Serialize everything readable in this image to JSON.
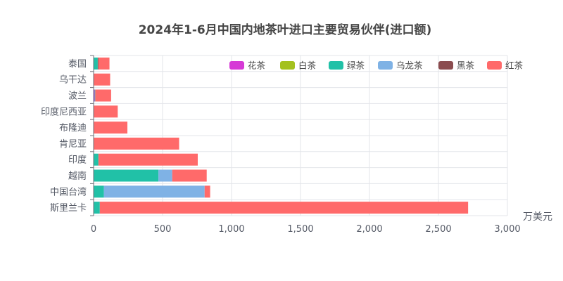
{
  "chart_data": {
    "type": "bar",
    "orientation": "horizontal",
    "stacked": true,
    "title": "2024年1-6月中国内地茶叶进口主要贸易伙伴(进口额)",
    "x_unit": "万美元",
    "xlim": [
      0,
      3000
    ],
    "x_ticks": [
      "0",
      "500",
      "1,000",
      "1,500",
      "2,000",
      "2,500",
      "3,000"
    ],
    "grid": true,
    "legend_position": "top-right",
    "categories": [
      "泰国",
      "乌干达",
      "波兰",
      "印度尼西亚",
      "布隆迪",
      "肯尼亚",
      "印度",
      "越南",
      "中国台湾",
      "斯里兰卡"
    ],
    "series": [
      {
        "name": "花茶",
        "color": "#d63ad6",
        "values": [
          0,
          0,
          8,
          0,
          0,
          0,
          0,
          0,
          0,
          0
        ]
      },
      {
        "name": "白茶",
        "color": "#a4c11f",
        "values": [
          0,
          0,
          0,
          0,
          0,
          0,
          0,
          0,
          0,
          0
        ]
      },
      {
        "name": "绿茶",
        "color": "#21c1a7",
        "values": [
          30,
          0,
          4,
          0,
          0,
          0,
          35,
          470,
          75,
          45
        ]
      },
      {
        "name": "乌龙茶",
        "color": "#7fb2e5",
        "values": [
          0,
          0,
          0,
          0,
          0,
          0,
          0,
          100,
          730,
          0
        ]
      },
      {
        "name": "黑茶",
        "color": "#8b4c4f",
        "values": [
          5,
          0,
          0,
          0,
          0,
          0,
          0,
          0,
          0,
          0
        ]
      },
      {
        "name": "红茶",
        "color": "#ff6a6a",
        "values": [
          80,
          120,
          115,
          175,
          245,
          620,
          720,
          250,
          40,
          2670
        ]
      }
    ]
  }
}
